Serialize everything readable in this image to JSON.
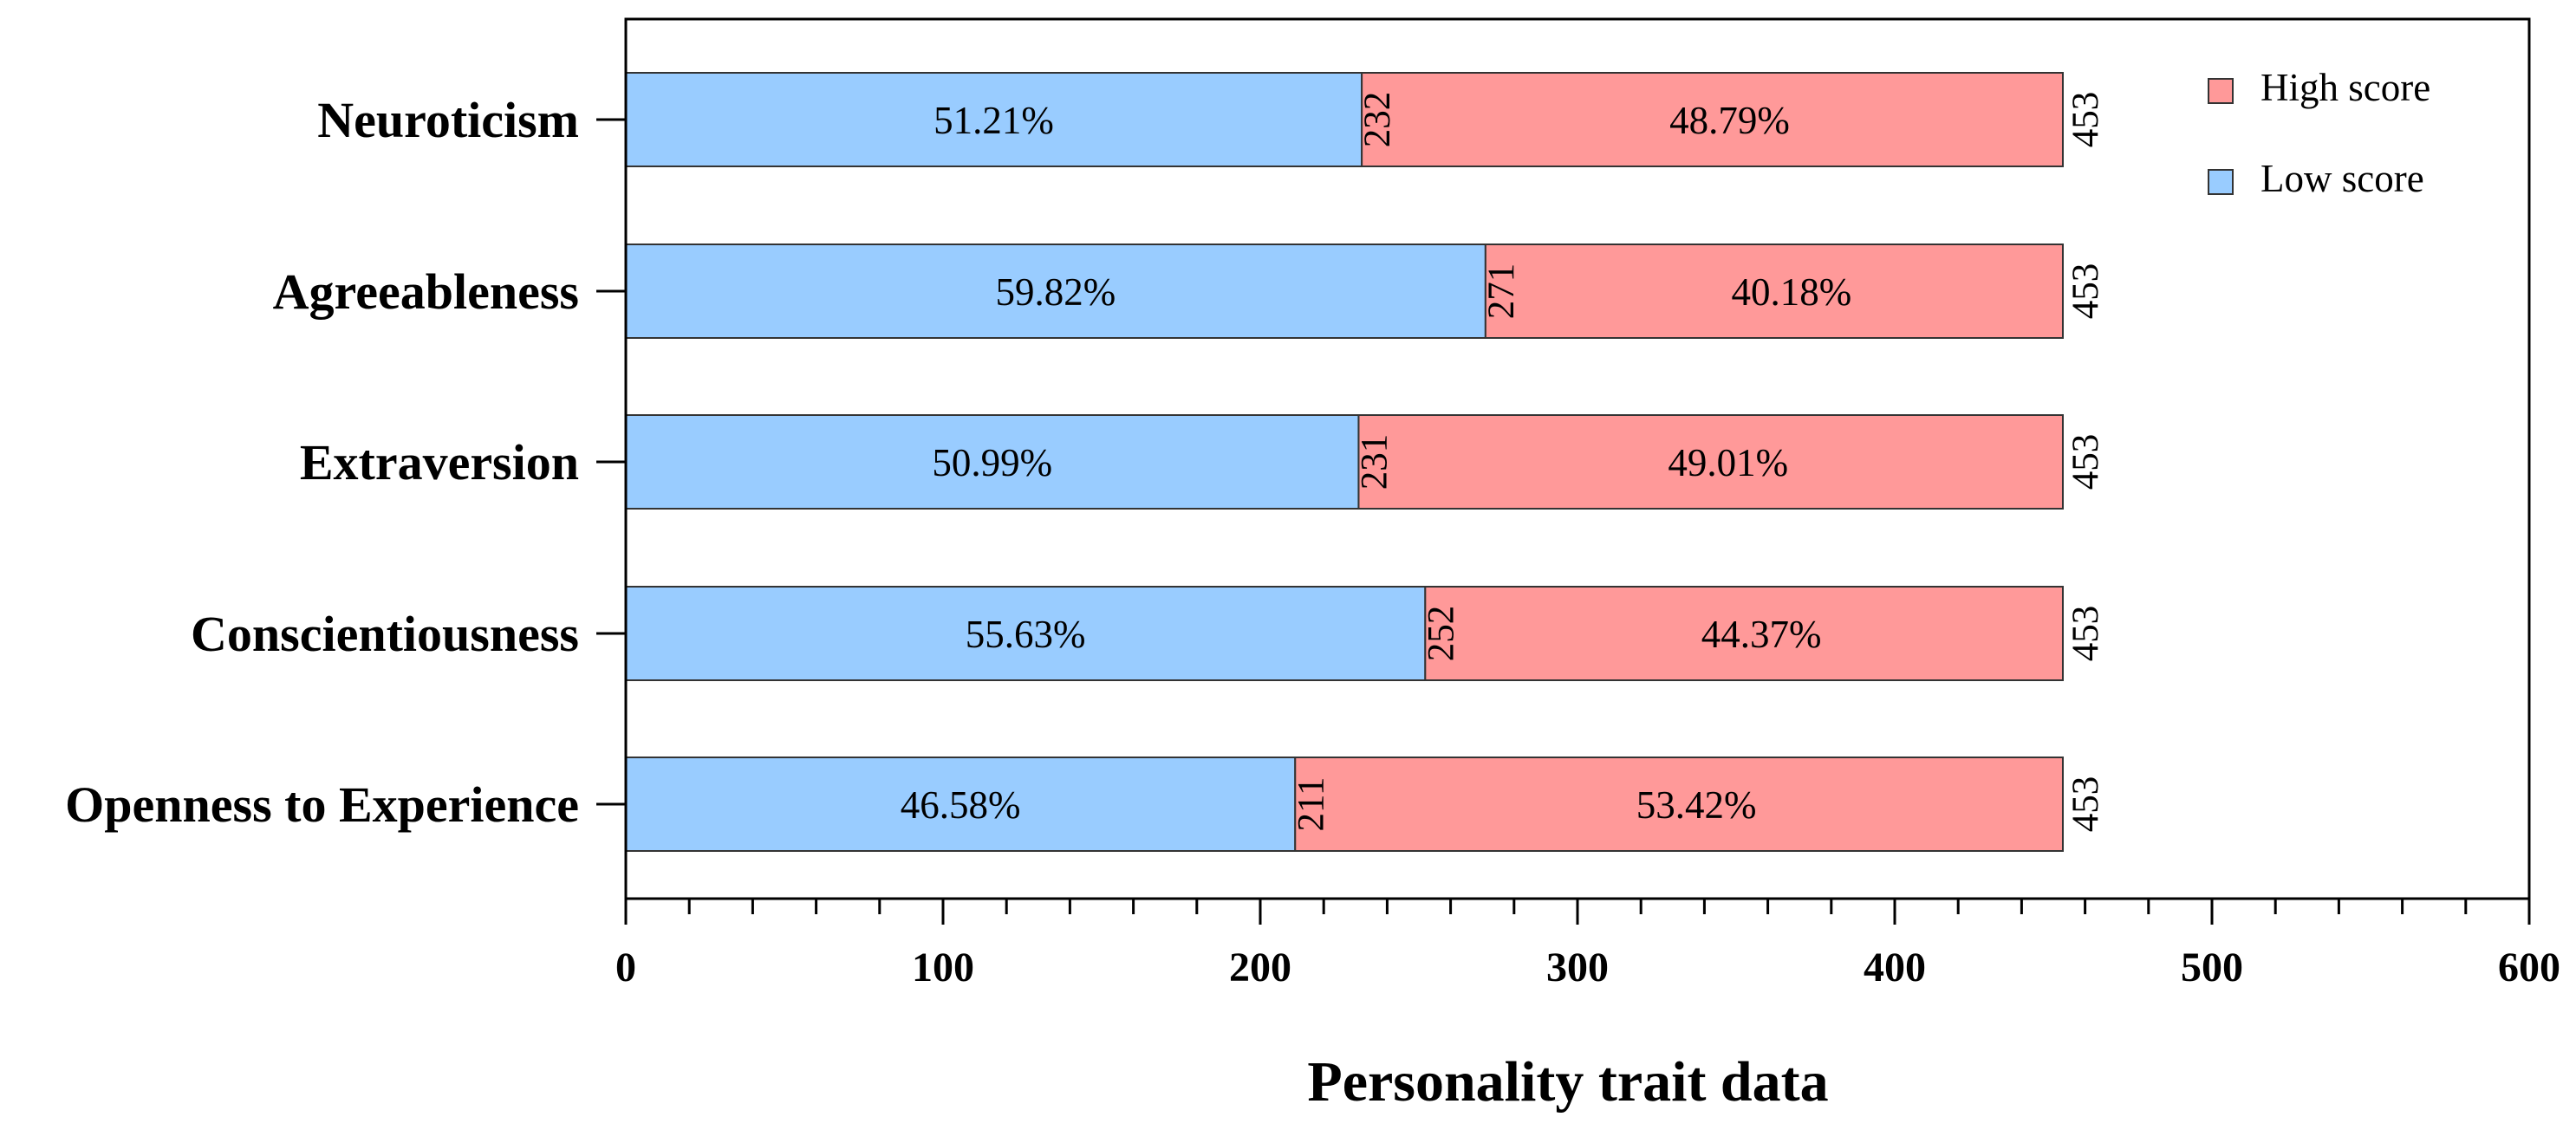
{
  "chart_data": {
    "type": "bar",
    "orientation": "horizontal",
    "stacked": true,
    "xlabel": "Personality trait data",
    "ylabel": "",
    "xlim": [
      0,
      600
    ],
    "x_ticks": [
      "0",
      "100",
      "200",
      "300",
      "400",
      "500",
      "600"
    ],
    "grid": false,
    "legend_position": "top-right",
    "categories": [
      "Neuroticism",
      "Agreeableness",
      "Extraversion",
      "Conscientiousness",
      "Openness to Experience"
    ],
    "series": [
      {
        "name": "Low score",
        "color": "#99ccff",
        "values": [
          232,
          271,
          231,
          252,
          211
        ],
        "value_labels": [
          "232",
          "271",
          "231",
          "252",
          "211"
        ],
        "percent_labels": [
          "51.21%",
          "59.82%",
          "50.99%",
          "55.63%",
          "46.58%"
        ]
      },
      {
        "name": "High score",
        "color": "#ff9999",
        "values": [
          221,
          182,
          222,
          201,
          242
        ],
        "percent_labels": [
          "48.79%",
          "40.18%",
          "49.01%",
          "44.37%",
          "53.42%"
        ]
      }
    ],
    "totals": [
      453,
      453,
      453,
      453,
      453
    ],
    "total_labels": [
      "453",
      "453",
      "453",
      "453",
      "453"
    ],
    "legend": [
      "High score",
      "Low score"
    ]
  }
}
